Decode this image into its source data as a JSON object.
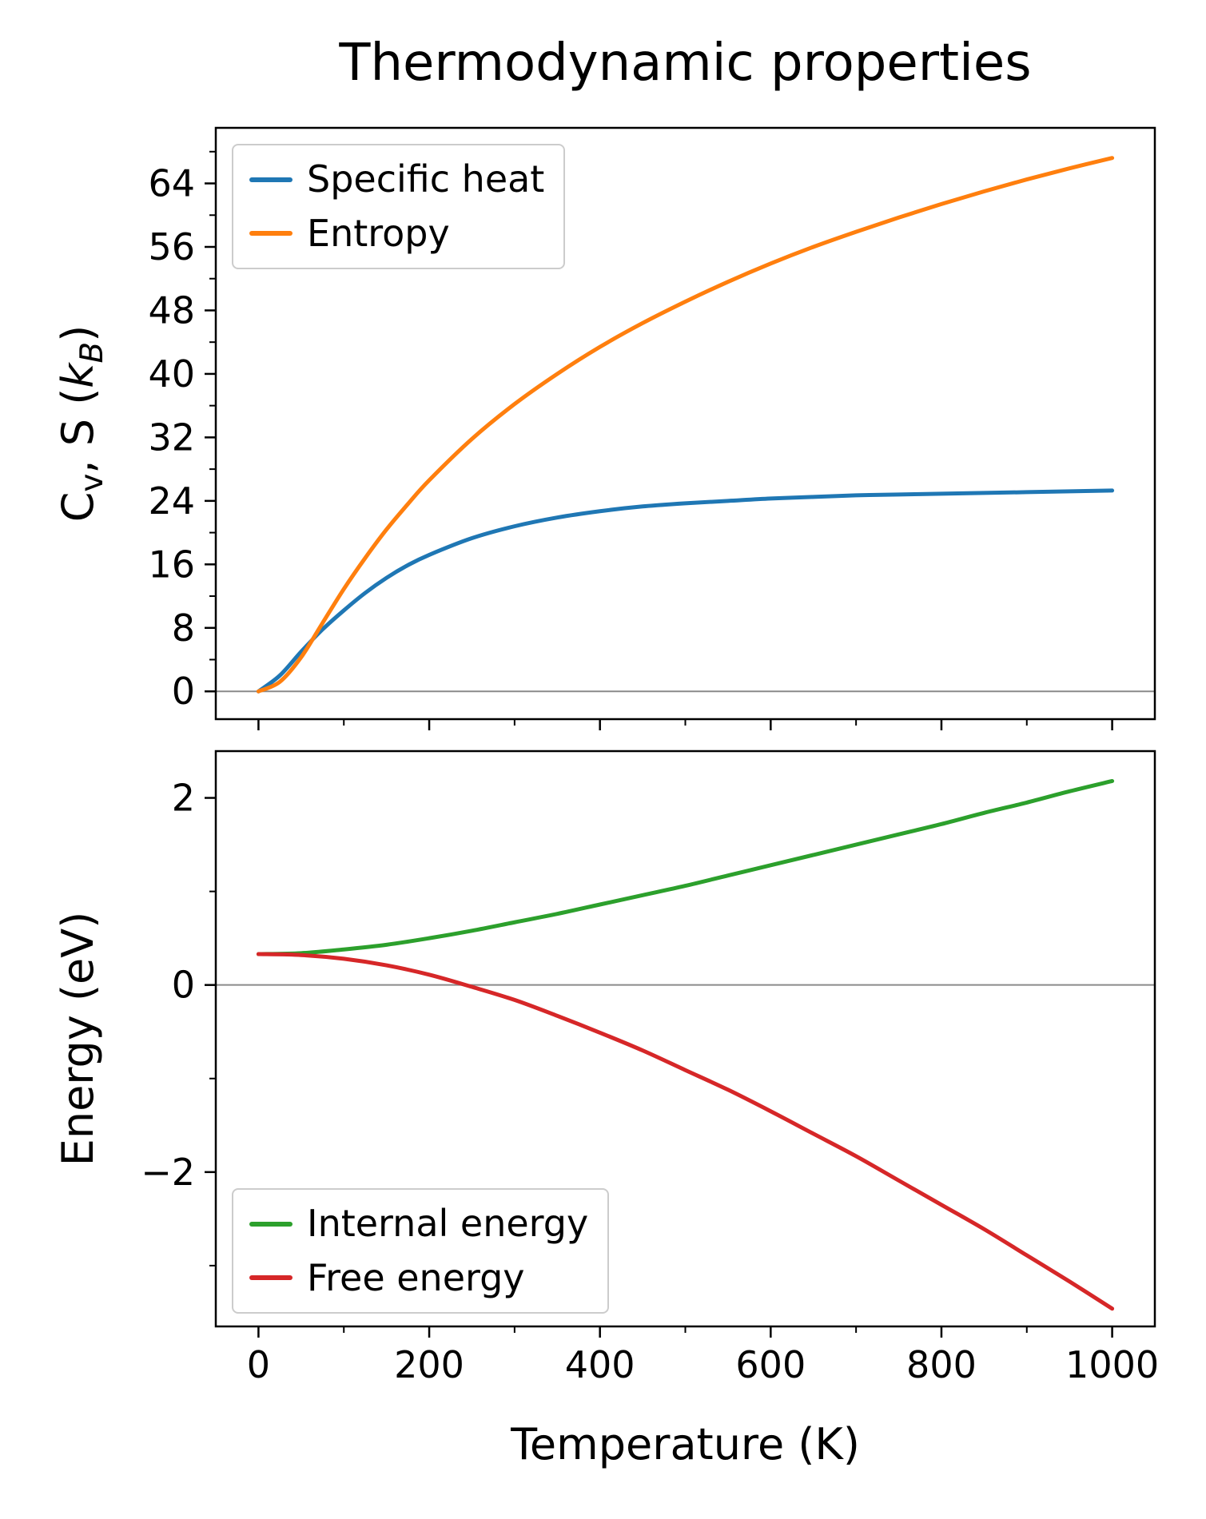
{
  "title": "Thermodynamic properties",
  "xlabel": "Temperature (K)",
  "chart_data": [
    {
      "type": "line",
      "title": "Thermodynamic properties",
      "ylabel": "C_v, S (k_B)",
      "ylabel_rich": [
        {
          "t": "C"
        },
        {
          "t": "v",
          "sub": true
        },
        {
          "t": ", S ("
        },
        {
          "t": "k",
          "i": true
        },
        {
          "t": "B",
          "i": true,
          "sub": true
        },
        {
          "t": ")"
        }
      ],
      "x": [
        0,
        25,
        50,
        75,
        100,
        125,
        150,
        175,
        200,
        250,
        300,
        350,
        400,
        450,
        500,
        550,
        600,
        650,
        700,
        750,
        800,
        850,
        900,
        950,
        1000
      ],
      "series": [
        {
          "name": "Specific heat",
          "color": "#1f77b4",
          "values": [
            0,
            2.0,
            5.0,
            7.8,
            10.2,
            12.4,
            14.3,
            15.9,
            17.2,
            19.3,
            20.8,
            21.9,
            22.7,
            23.3,
            23.7,
            24.0,
            24.3,
            24.5,
            24.7,
            24.8,
            24.9,
            25.0,
            25.1,
            25.2,
            25.3
          ]
        },
        {
          "name": "Entropy",
          "color": "#ff7f0e",
          "values": [
            0,
            1.2,
            4.3,
            8.6,
            12.9,
            16.8,
            20.4,
            23.6,
            26.6,
            31.8,
            36.2,
            40.0,
            43.4,
            46.4,
            49.1,
            51.6,
            53.9,
            56.0,
            57.9,
            59.7,
            61.4,
            63.0,
            64.5,
            65.9,
            67.2
          ]
        }
      ],
      "xlim": [
        -50,
        1050
      ],
      "ylim": [
        -3.5,
        71
      ],
      "xticks": {
        "values": [
          0,
          200,
          400,
          600,
          800,
          1000
        ],
        "labels": [
          "0",
          "200",
          "400",
          "600",
          "800",
          "1000"
        ],
        "show_labels": false
      },
      "xminor": [
        100,
        300,
        500,
        700,
        900
      ],
      "yticks": {
        "values": [
          0,
          8,
          16,
          24,
          32,
          40,
          48,
          56,
          64
        ],
        "labels": [
          "0",
          "8",
          "16",
          "24",
          "32",
          "40",
          "48",
          "56",
          "64"
        ]
      },
      "yminor": [
        4,
        12,
        20,
        28,
        36,
        44,
        52,
        60,
        68
      ],
      "zero_line": true,
      "grid": false,
      "legend": {
        "position": "upper-left"
      }
    },
    {
      "type": "line",
      "ylabel": "Energy (eV)",
      "ylabel_rich": [
        {
          "t": "Energy (eV)"
        }
      ],
      "x": [
        0,
        50,
        100,
        150,
        200,
        250,
        300,
        350,
        400,
        450,
        500,
        550,
        600,
        650,
        700,
        750,
        800,
        850,
        900,
        950,
        1000
      ],
      "series": [
        {
          "name": "Internal energy",
          "color": "#2ca02c",
          "values": [
            0.33,
            0.34,
            0.38,
            0.43,
            0.5,
            0.58,
            0.67,
            0.76,
            0.86,
            0.96,
            1.06,
            1.17,
            1.28,
            1.39,
            1.5,
            1.61,
            1.72,
            1.84,
            1.95,
            2.07,
            2.18
          ]
        },
        {
          "name": "Free energy",
          "color": "#d62728",
          "values": [
            0.33,
            0.32,
            0.28,
            0.21,
            0.11,
            -0.02,
            -0.16,
            -0.33,
            -0.51,
            -0.7,
            -0.91,
            -1.12,
            -1.35,
            -1.59,
            -1.83,
            -2.09,
            -2.35,
            -2.61,
            -2.89,
            -3.17,
            -3.46
          ]
        }
      ],
      "xlim": [
        -50,
        1050
      ],
      "ylim": [
        -3.65,
        2.5
      ],
      "xticks": {
        "values": [
          0,
          200,
          400,
          600,
          800,
          1000
        ],
        "labels": [
          "0",
          "200",
          "400",
          "600",
          "800",
          "1000"
        ],
        "show_labels": true
      },
      "xminor": [
        100,
        300,
        500,
        700,
        900
      ],
      "yticks": {
        "values": [
          -2,
          0,
          2
        ],
        "labels": [
          "−2",
          "0",
          "2"
        ]
      },
      "yminor": [
        -3,
        -1,
        1
      ],
      "zero_line": true,
      "grid": false,
      "legend": {
        "position": "lower-left"
      }
    }
  ],
  "style": {
    "spine_color": "#000000",
    "zero_line_color": "#8a8a8a",
    "tick_label_size": 46,
    "curve_width": 5
  }
}
